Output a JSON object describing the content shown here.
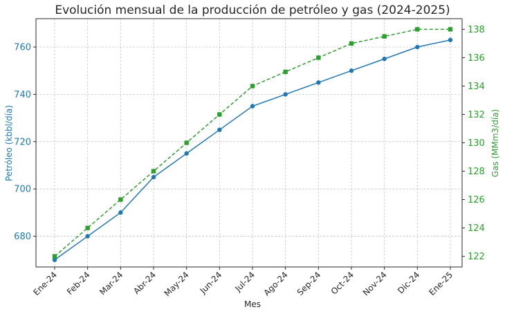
{
  "colors": {
    "oil": "#1f77b4",
    "gas": "#2ca02c",
    "text": "#262626"
  },
  "chart_data": {
    "type": "line",
    "title": "Evolución mensual de la producción de petróleo y gas (2024-2025)",
    "xlabel": "Mes",
    "ylabel_left": "Petróleo (kbbl/día)",
    "ylabel_right": "Gas (MMm3/día)",
    "categories": [
      "Ene-24",
      "Feb-24",
      "Mar-24",
      "Abr-24",
      "May-24",
      "Jun-24",
      "Jul-24",
      "Ago-24",
      "Sep-24",
      "Oct-24",
      "Nov-24",
      "Dic-24",
      "Ene-25"
    ],
    "ylim_left": [
      667,
      772
    ],
    "ylim_right": [
      121.25,
      138.75
    ],
    "yticks_left": [
      680,
      700,
      720,
      740,
      760
    ],
    "yticks_right": [
      122,
      124,
      126,
      128,
      130,
      132,
      134,
      136,
      138
    ],
    "grid": true,
    "series": [
      {
        "axis": "left",
        "style": "solid-circle",
        "values": [
          670,
          680,
          690,
          705,
          715,
          725,
          735,
          740,
          745,
          750,
          755,
          760,
          763
        ]
      },
      {
        "axis": "right",
        "style": "dashed-square",
        "values": [
          122,
          124,
          126,
          128,
          130,
          132,
          134,
          135,
          136,
          137,
          137.5,
          138,
          138
        ]
      }
    ]
  }
}
